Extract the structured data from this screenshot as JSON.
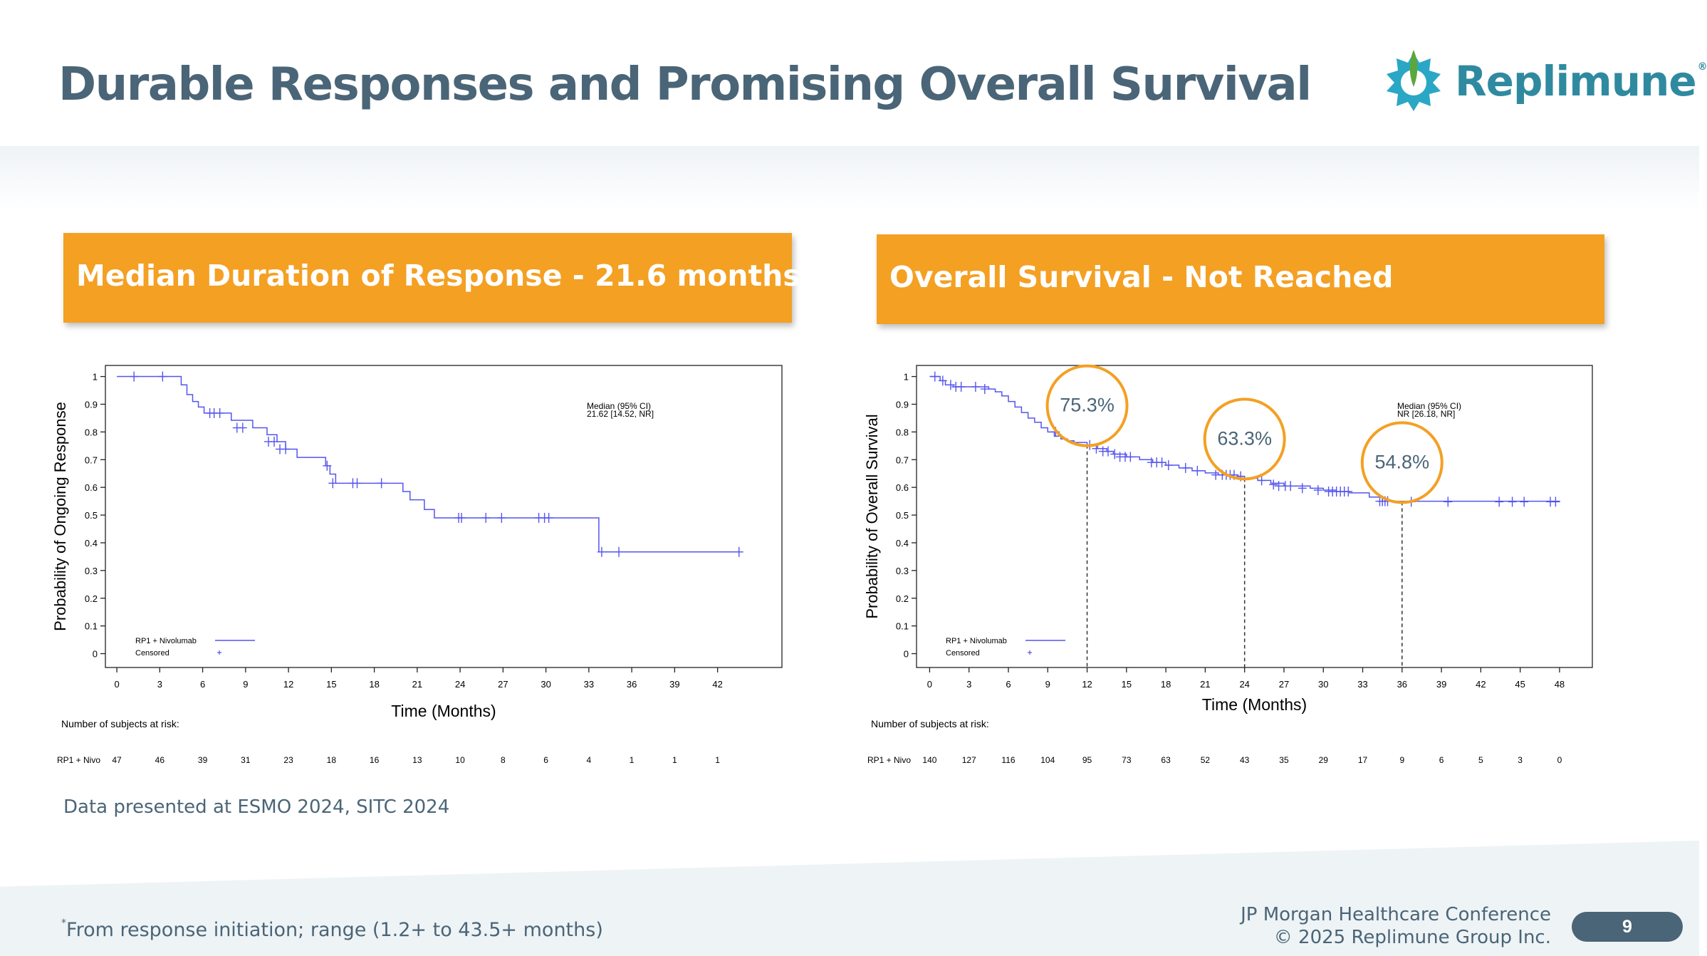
{
  "slide": {
    "title": "Durable Responses and Promising Overall Survival",
    "logo_text": "Replimune",
    "logo_mark": "®",
    "data_note": "Data presented at ESMO 2024, SITC 2024",
    "footnote_mark": "*",
    "footnote": "From response initiation; range (1.2+ to 43.5+ months)",
    "conference_line1": "JP Morgan Healthcare Conference",
    "conference_line2": "© 2025 Replimune Group Inc.",
    "page_number": "9",
    "colors": {
      "title": "#4a6577",
      "orange": "#f4a023",
      "curve": "#5555ee",
      "logo_teal": "#2f8aa0",
      "logo_green": "#5aa83c"
    }
  },
  "chart_data": [
    {
      "type": "line",
      "header": "Median Duration of Response -  21.6 months",
      "header_mark": "*",
      "xlabel": "Time (Months)",
      "ylabel": "Probability of Ongoing Response",
      "xticks": [
        0,
        3,
        6,
        9,
        12,
        15,
        18,
        21,
        24,
        27,
        30,
        33,
        36,
        39,
        42
      ],
      "yticks": [
        0,
        0.1,
        0.2,
        0.3,
        0.4,
        0.5,
        0.6,
        0.7,
        0.8,
        0.9,
        1
      ],
      "ytick_labels": [
        "0",
        "0.1",
        "0.2",
        "0.3",
        "0.4",
        "0.5",
        "0.6",
        "0.7",
        "0.8",
        "0.9",
        "1"
      ],
      "xlim": [
        -0.8,
        46.5
      ],
      "ylim": [
        -0.05,
        1.04
      ],
      "annotation_line1": "Median (95% CI)",
      "annotation_line2": "21.62 [14.52, NR]",
      "legend": {
        "position": "bottom-left",
        "series_label": "RP1 + Nivolumab",
        "censored_label": "Censored"
      },
      "series": [
        {
          "name": "RP1 + Nivolumab",
          "steps": [
            [
              0,
              1
            ],
            [
              4.5,
              0.97
            ],
            [
              4.9,
              0.935
            ],
            [
              5.3,
              0.91
            ],
            [
              5.7,
              0.89
            ],
            [
              6.1,
              0.868
            ],
            [
              8,
              0.842
            ],
            [
              9.5,
              0.815
            ],
            [
              10.5,
              0.79
            ],
            [
              11.2,
              0.765
            ],
            [
              11.8,
              0.738
            ],
            [
              12.6,
              0.708
            ],
            [
              14.6,
              0.678
            ],
            [
              14.9,
              0.648
            ],
            [
              15.3,
              0.615
            ],
            [
              20,
              0.585
            ],
            [
              20.5,
              0.555
            ],
            [
              21.5,
              0.52
            ],
            [
              22.2,
              0.49
            ],
            [
              33.7,
              0.367
            ],
            [
              43.5,
              0.367
            ]
          ],
          "censored": [
            [
              1.2,
              1
            ],
            [
              3.2,
              1
            ],
            [
              6.5,
              0.868
            ],
            [
              6.8,
              0.868
            ],
            [
              7.2,
              0.868
            ],
            [
              8.4,
              0.815
            ],
            [
              8.8,
              0.815
            ],
            [
              10.6,
              0.765
            ],
            [
              11,
              0.765
            ],
            [
              11.4,
              0.738
            ],
            [
              11.8,
              0.738
            ],
            [
              14.7,
              0.678
            ],
            [
              15.1,
              0.615
            ],
            [
              16.5,
              0.615
            ],
            [
              16.8,
              0.615
            ],
            [
              18.5,
              0.615
            ],
            [
              23.9,
              0.49
            ],
            [
              24.1,
              0.49
            ],
            [
              25.8,
              0.49
            ],
            [
              26.9,
              0.49
            ],
            [
              29.5,
              0.49
            ],
            [
              29.9,
              0.49
            ],
            [
              30.2,
              0.49
            ],
            [
              33.9,
              0.367
            ],
            [
              35.1,
              0.367
            ],
            [
              43.5,
              0.367
            ]
          ]
        }
      ],
      "risk_table": {
        "header": "Number of subjects at risk:",
        "row_label": "RP1 + Nivo",
        "values": [
          "47",
          "46",
          "39",
          "31",
          "23",
          "18",
          "16",
          "13",
          "10",
          "8",
          "6",
          "4",
          "1",
          "1",
          "1"
        ]
      }
    },
    {
      "type": "line",
      "header": "Overall Survival - Not Reached",
      "xlabel": "Time (Months)",
      "ylabel": "Probability of Overall Survival",
      "xticks": [
        0,
        3,
        6,
        9,
        12,
        15,
        18,
        21,
        24,
        27,
        30,
        33,
        36,
        39,
        42,
        45,
        48
      ],
      "yticks": [
        0,
        0.1,
        0.2,
        0.3,
        0.4,
        0.5,
        0.6,
        0.7,
        0.8,
        0.9,
        1
      ],
      "ytick_labels": [
        "0",
        "0.1",
        "0.2",
        "0.3",
        "0.4",
        "0.5",
        "0.6",
        "0.7",
        "0.8",
        "0.9",
        "1"
      ],
      "xlim": [
        -1,
        50.5
      ],
      "ylim": [
        -0.05,
        1.04
      ],
      "annotation_line1": "Median (95% CI)",
      "annotation_line2": "NR [26.18, NR]",
      "legend": {
        "position": "bottom-left",
        "series_label": "RP1 + Nivolumab",
        "censored_label": "Censored"
      },
      "landmarks": [
        {
          "x": 12,
          "y": 0.753,
          "label": "75.3%"
        },
        {
          "x": 24,
          "y": 0.633,
          "label": "63.3%"
        },
        {
          "x": 36,
          "y": 0.548,
          "label": "54.8%"
        }
      ],
      "series": [
        {
          "name": "RP1 + Nivolumab",
          "steps": [
            [
              0,
              1
            ],
            [
              0.8,
              0.985
            ],
            [
              1.2,
              0.97
            ],
            [
              1.8,
              0.963
            ],
            [
              3,
              0.963
            ],
            [
              4.5,
              0.955
            ],
            [
              5,
              0.945
            ],
            [
              5.5,
              0.93
            ],
            [
              6,
              0.91
            ],
            [
              6.5,
              0.89
            ],
            [
              7,
              0.87
            ],
            [
              7.5,
              0.85
            ],
            [
              8,
              0.835
            ],
            [
              8.5,
              0.815
            ],
            [
              9,
              0.8
            ],
            [
              9.5,
              0.785
            ],
            [
              10,
              0.775
            ],
            [
              10.5,
              0.768
            ],
            [
              11,
              0.762
            ],
            [
              12,
              0.753
            ],
            [
              12.8,
              0.74
            ],
            [
              13.5,
              0.73
            ],
            [
              14,
              0.72
            ],
            [
              15,
              0.71
            ],
            [
              16,
              0.7
            ],
            [
              17,
              0.69
            ],
            [
              18,
              0.68
            ],
            [
              19,
              0.67
            ],
            [
              20,
              0.66
            ],
            [
              21,
              0.652
            ],
            [
              22,
              0.645
            ],
            [
              23.5,
              0.64
            ],
            [
              24,
              0.633
            ],
            [
              25,
              0.625
            ],
            [
              26,
              0.615
            ],
            [
              27,
              0.605
            ],
            [
              29,
              0.597
            ],
            [
              30,
              0.59
            ],
            [
              31,
              0.585
            ],
            [
              32,
              0.58
            ],
            [
              33.5,
              0.565
            ],
            [
              34.5,
              0.55
            ],
            [
              48,
              0.548
            ]
          ],
          "censored": [
            [
              0.4,
              1
            ],
            [
              1,
              0.985
            ],
            [
              1.6,
              0.97
            ],
            [
              2,
              0.963
            ],
            [
              2.4,
              0.963
            ],
            [
              3.5,
              0.963
            ],
            [
              4.2,
              0.955
            ],
            [
              9.6,
              0.8
            ],
            [
              12.2,
              0.753
            ],
            [
              12.7,
              0.74
            ],
            [
              13.2,
              0.73
            ],
            [
              13.6,
              0.73
            ],
            [
              14.1,
              0.72
            ],
            [
              14.5,
              0.71
            ],
            [
              14.9,
              0.71
            ],
            [
              15.3,
              0.71
            ],
            [
              16.9,
              0.69
            ],
            [
              17.3,
              0.69
            ],
            [
              17.7,
              0.69
            ],
            [
              18.2,
              0.68
            ],
            [
              19.5,
              0.67
            ],
            [
              20.4,
              0.66
            ],
            [
              21.8,
              0.645
            ],
            [
              22.3,
              0.645
            ],
            [
              22.6,
              0.645
            ],
            [
              22.9,
              0.645
            ],
            [
              23.2,
              0.645
            ],
            [
              23.7,
              0.64
            ],
            [
              25.3,
              0.625
            ],
            [
              26.2,
              0.61
            ],
            [
              26.6,
              0.605
            ],
            [
              27.1,
              0.605
            ],
            [
              27.5,
              0.605
            ],
            [
              28.4,
              0.597
            ],
            [
              29.6,
              0.59
            ],
            [
              30.4,
              0.585
            ],
            [
              30.7,
              0.585
            ],
            [
              31,
              0.585
            ],
            [
              31.3,
              0.585
            ],
            [
              31.6,
              0.585
            ],
            [
              31.9,
              0.585
            ],
            [
              34.3,
              0.55
            ],
            [
              34.5,
              0.55
            ],
            [
              34.7,
              0.55
            ],
            [
              34.9,
              0.55
            ],
            [
              36.7,
              0.548
            ],
            [
              39.5,
              0.548
            ],
            [
              43.4,
              0.548
            ],
            [
              44.4,
              0.548
            ],
            [
              45.3,
              0.548
            ],
            [
              47.3,
              0.548
            ],
            [
              47.7,
              0.548
            ]
          ]
        }
      ],
      "risk_table": {
        "header": "Number of subjects at risk:",
        "row_label": "RP1 + Nivo",
        "values": [
          "140",
          "127",
          "116",
          "104",
          "95",
          "73",
          "63",
          "52",
          "43",
          "35",
          "29",
          "17",
          "9",
          "6",
          "5",
          "3",
          "0"
        ]
      }
    }
  ]
}
